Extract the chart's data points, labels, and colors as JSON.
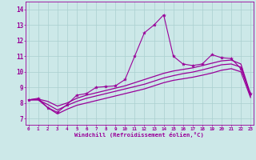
{
  "background_color": "#cce8e8",
  "line_color": "#990099",
  "grid_color": "#aacfcf",
  "xlabel": "Windchill (Refroidissement éolien,°C)",
  "ylabel_ticks": [
    7,
    8,
    9,
    10,
    11,
    12,
    13,
    14
  ],
  "xlabel_ticks": [
    0,
    1,
    2,
    3,
    4,
    5,
    6,
    7,
    8,
    9,
    10,
    11,
    12,
    13,
    14,
    15,
    16,
    17,
    18,
    19,
    20,
    21,
    22,
    23
  ],
  "xlim": [
    -0.3,
    23.3
  ],
  "ylim": [
    6.6,
    14.5
  ],
  "series": [
    {
      "x": [
        0,
        1,
        2,
        3,
        4,
        5,
        6,
        7,
        8,
        9,
        10,
        11,
        12,
        13,
        14,
        15,
        16,
        17,
        18,
        19,
        20,
        21,
        22,
        23
      ],
      "y": [
        8.2,
        8.3,
        7.7,
        7.4,
        7.9,
        8.5,
        8.6,
        9.0,
        9.05,
        9.1,
        9.5,
        11.0,
        12.5,
        13.0,
        13.65,
        11.0,
        10.5,
        10.4,
        10.5,
        11.1,
        10.9,
        10.85,
        10.2,
        8.6
      ],
      "marker": "*",
      "markersize": 3,
      "linewidth": 0.8
    },
    {
      "x": [
        0,
        1,
        2,
        3,
        4,
        5,
        6,
        7,
        8,
        9,
        10,
        11,
        12,
        13,
        14,
        15,
        16,
        17,
        18,
        19,
        20,
        21,
        22,
        23
      ],
      "y": [
        8.2,
        8.25,
        8.1,
        7.8,
        8.0,
        8.3,
        8.5,
        8.65,
        8.8,
        8.95,
        9.1,
        9.3,
        9.5,
        9.7,
        9.9,
        10.05,
        10.15,
        10.25,
        10.4,
        10.55,
        10.7,
        10.75,
        10.5,
        8.55
      ],
      "marker": "",
      "markersize": 0,
      "linewidth": 0.9
    },
    {
      "x": [
        0,
        1,
        2,
        3,
        4,
        5,
        6,
        7,
        8,
        9,
        10,
        11,
        12,
        13,
        14,
        15,
        16,
        17,
        18,
        19,
        20,
        21,
        22,
        23
      ],
      "y": [
        8.2,
        8.2,
        7.9,
        7.55,
        7.85,
        8.1,
        8.3,
        8.45,
        8.6,
        8.75,
        8.9,
        9.05,
        9.2,
        9.4,
        9.6,
        9.75,
        9.88,
        9.98,
        10.12,
        10.28,
        10.45,
        10.5,
        10.3,
        8.45
      ],
      "marker": "",
      "markersize": 0,
      "linewidth": 0.9
    },
    {
      "x": [
        0,
        1,
        2,
        3,
        4,
        5,
        6,
        7,
        8,
        9,
        10,
        11,
        12,
        13,
        14,
        15,
        16,
        17,
        18,
        19,
        20,
        21,
        22,
        23
      ],
      "y": [
        8.2,
        8.2,
        7.7,
        7.3,
        7.6,
        7.85,
        8.0,
        8.15,
        8.3,
        8.45,
        8.6,
        8.75,
        8.9,
        9.1,
        9.3,
        9.45,
        9.55,
        9.65,
        9.78,
        9.92,
        10.1,
        10.2,
        10.0,
        8.35
      ],
      "marker": "",
      "markersize": 0,
      "linewidth": 0.9
    }
  ]
}
